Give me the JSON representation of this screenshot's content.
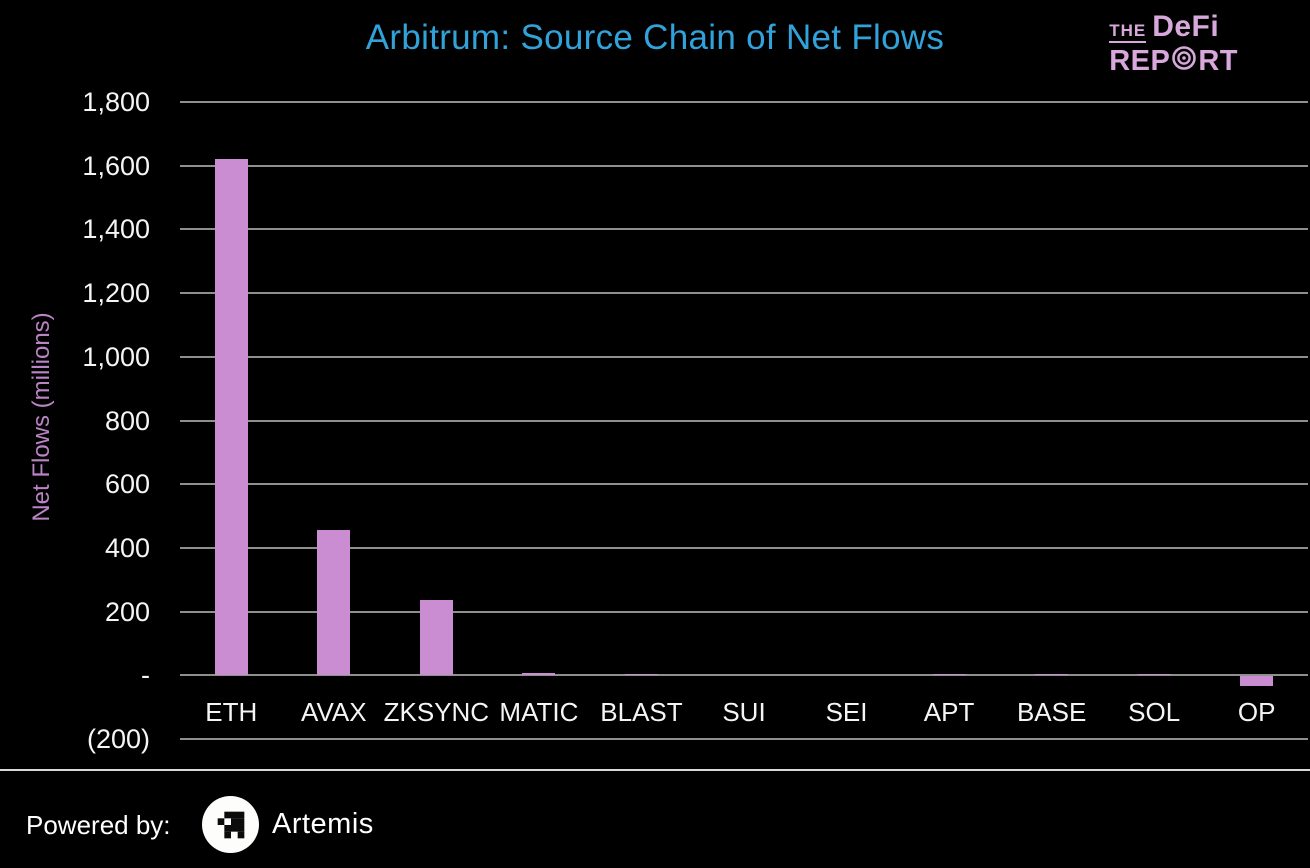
{
  "title": "Arbitrum: Source Chain of Net Flows",
  "brand": {
    "the": "THE",
    "defi": "DeFi",
    "report_pre": "REP",
    "report_post": "RT"
  },
  "footer": {
    "powered_by": "Powered by:",
    "artemis": "Artemis"
  },
  "colors": {
    "background": "#000000",
    "title": "#31a3da",
    "axis_text": "#f5f5f5",
    "ylabel_text": "#bb84c6",
    "gridline": "#8f8f8f",
    "bar": "#cb8dd2",
    "brand": "#d8a8dc",
    "footer_text": "#ffffff"
  },
  "chart_data": {
    "type": "bar",
    "title": "Arbitrum: Source Chain of Net Flows",
    "ylabel": "Net Flows (millions)",
    "xlabel": "",
    "categories": [
      "ETH",
      "AVAX",
      "ZKSYNC",
      "MATIC",
      "BLAST",
      "SUI",
      "SEI",
      "APT",
      "BASE",
      "SOL",
      "OP"
    ],
    "values": [
      1620,
      455,
      235,
      8,
      4,
      0,
      0,
      2,
      2,
      3,
      -30
    ],
    "ylim": [
      -200,
      1800
    ],
    "ytick_interval": 200,
    "ytick_labels_top_to_bottom": [
      "1,800",
      "1,600",
      "1,400",
      "1,200",
      "1,000",
      "800",
      "600",
      "400",
      "200",
      "-",
      "(200)"
    ],
    "grid": true,
    "legend_position": "none",
    "bar_color": "#cb8dd2"
  }
}
